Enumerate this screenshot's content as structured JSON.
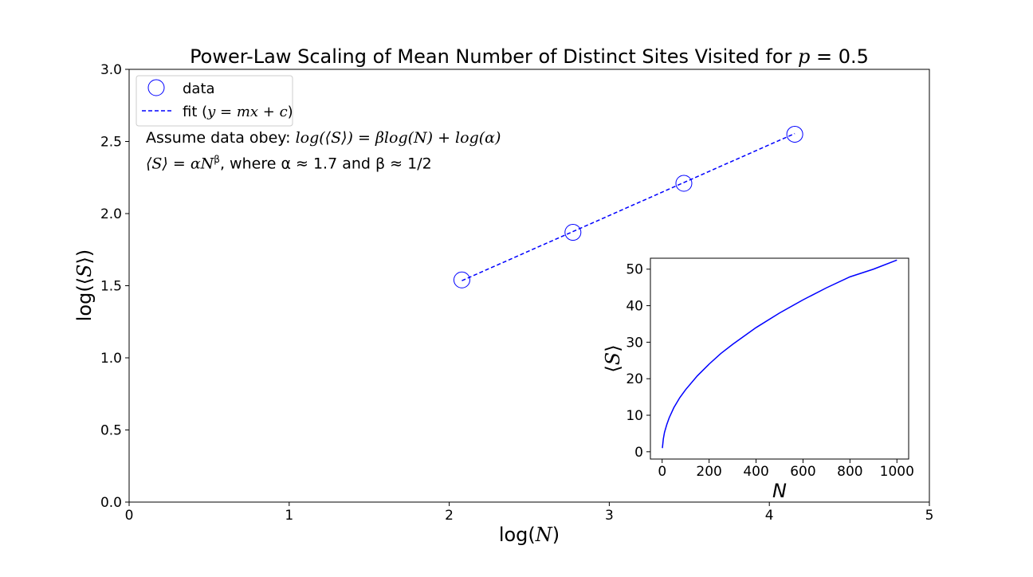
{
  "chart_data": [
    {
      "type": "scatter",
      "title": "Power-Law Scaling of Mean Number of Distinct Sites Visited for p = 0.5",
      "title_prefix": "Power-Law Scaling of Mean Number of Distinct Sites Visited for ",
      "title_var": "p",
      "title_suffix": " = 0.5",
      "xlabel": "log(N)",
      "ylabel": "log(⟨S⟩)",
      "xlim": [
        0,
        5
      ],
      "ylim": [
        0,
        3.0
      ],
      "xticks": [
        0,
        1,
        2,
        3,
        4,
        5
      ],
      "xtick_labels": [
        "0",
        "1",
        "2",
        "3",
        "4",
        "5"
      ],
      "yticks": [
        0.0,
        0.5,
        1.0,
        1.5,
        2.0,
        2.5,
        3.0
      ],
      "ytick_labels": [
        "0.0",
        "0.5",
        "1.0",
        "1.5",
        "2.0",
        "2.5",
        "3.0"
      ],
      "grid": false,
      "legend_position": "top-left",
      "series": [
        {
          "name": "data",
          "marker": "open-circle",
          "color": "#0000ff",
          "x": [
            2.079,
            2.773,
            3.466,
            4.159
          ],
          "y": [
            1.54,
            1.87,
            2.21,
            2.55
          ]
        },
        {
          "name": "fit (y = mx + c)",
          "style": "dashed-line",
          "color": "#0000ff",
          "x": [
            2.079,
            4.159
          ],
          "y": [
            1.535,
            2.555
          ]
        }
      ],
      "annotations": [
        "Assume data obey: log(⟨S⟩) = βlog(N) + log(α)",
        "⟨S⟩ = αN^β, where α ≈ 1.7 and β ≈ 1/2"
      ]
    },
    {
      "type": "line",
      "inset": true,
      "xlabel": "N",
      "ylabel": "⟨S⟩",
      "xlim": [
        -50,
        1050
      ],
      "ylim": [
        -2,
        53
      ],
      "xticks": [
        0,
        200,
        400,
        600,
        800,
        1000
      ],
      "xtick_labels": [
        "0",
        "200",
        "400",
        "600",
        "800",
        "1000"
      ],
      "yticks": [
        0,
        10,
        20,
        30,
        40,
        50
      ],
      "ytick_labels": [
        "0",
        "10",
        "20",
        "30",
        "40",
        "50"
      ],
      "grid": false,
      "series": [
        {
          "color": "#0000ff",
          "x": [
            1,
            5,
            10,
            20,
            30,
            50,
            75,
            100,
            150,
            200,
            250,
            300,
            400,
            500,
            600,
            700,
            800,
            900,
            1000
          ],
          "y": [
            1.0,
            3.5,
            5.3,
            7.5,
            9.3,
            12.1,
            14.8,
            17.0,
            20.8,
            24.0,
            26.9,
            29.4,
            34.0,
            38.0,
            41.6,
            44.9,
            47.9,
            50.0,
            52.5
          ]
        }
      ]
    }
  ],
  "legend": {
    "data_label": "data",
    "fit_label_prefix": "fit (",
    "fit_label_math": "y = mx + c",
    "fit_label_suffix": ")"
  },
  "annotation_text": {
    "line1_prefix": "Assume data obey: ",
    "line1_math": "log(⟨S⟩) = βlog(N) + log(α)",
    "line2_math": "⟨S⟩ = αN",
    "line2_sup": "β",
    "line2_rest": ", where α ≈ 1.7 and β ≈ 1/2"
  },
  "colors": {
    "series": "#0000ff",
    "axes": "#000000",
    "background": "#ffffff"
  }
}
